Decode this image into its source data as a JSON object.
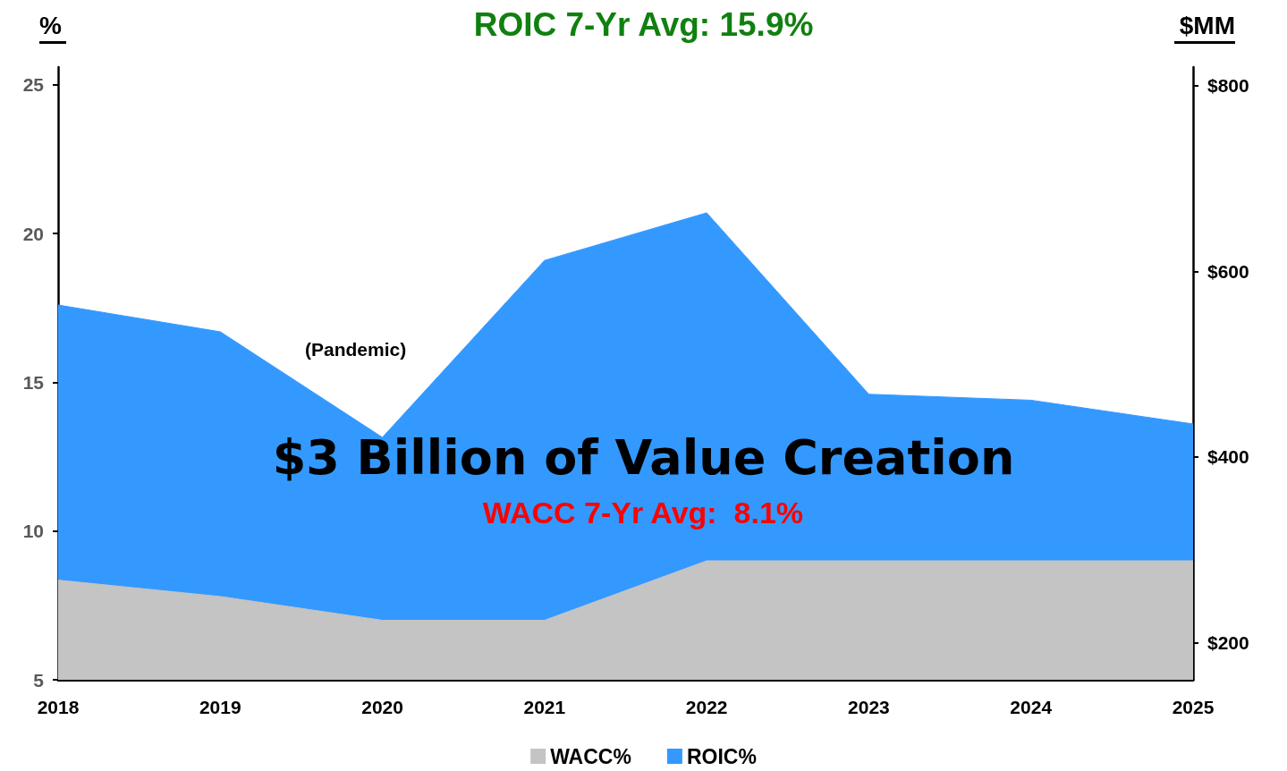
{
  "chart_data": {
    "type": "area",
    "title": "ROIC 7-Yr Avg: 15.9%",
    "ylabel": "%",
    "y2label": "$MM",
    "categories": [
      "2018",
      "2019",
      "2020",
      "2021",
      "2022",
      "2023",
      "2024",
      "2025"
    ],
    "series": [
      {
        "name": "WACC%",
        "color": "#c4c4c4",
        "values": [
          8.35,
          7.8,
          7.0,
          7.0,
          9.0,
          9.0,
          9.0,
          9.0
        ]
      },
      {
        "name": "ROIC%",
        "color": "#3399ff",
        "values": [
          17.6,
          16.7,
          13.15,
          19.1,
          20.7,
          14.6,
          14.4,
          13.6
        ]
      }
    ],
    "ylim": [
      5,
      25.6
    ],
    "yticks": [
      5,
      10,
      15,
      20,
      25
    ],
    "y2lim": [
      160,
      820
    ],
    "y2ticks": [
      {
        "value": 200,
        "label": "$200"
      },
      {
        "value": 400,
        "label": "$400"
      },
      {
        "value": 600,
        "label": "$600"
      },
      {
        "value": 800,
        "label": "$800"
      }
    ],
    "annotations": [
      "(Pandemic)",
      "$3 Billion of Value Creation",
      "WACC 7-Yr Avg:  8.1%"
    ],
    "legend": "bottom",
    "grid": false,
    "marker": "none"
  }
}
